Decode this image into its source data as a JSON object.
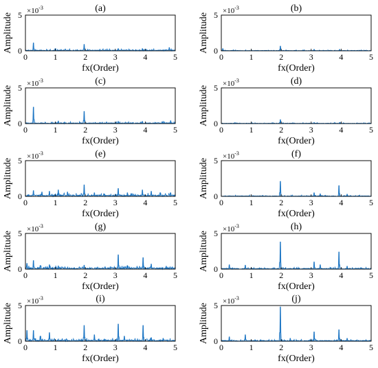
{
  "figure": {
    "x_label": "fx(Order)",
    "y_label": "Amplitude",
    "y_multiplier_base": "×10",
    "y_multiplier_exp": "-3",
    "series_color": "#1f77c4"
  },
  "chart_data": [
    {
      "type": "line",
      "title": "(a)",
      "xlabel": "fx(Order)",
      "ylabel": "Amplitude",
      "xlim": [
        0,
        5
      ],
      "ylim": [
        0,
        5
      ],
      "y_units": "×10^-3",
      "x_ticks": [
        "0",
        "1",
        "2",
        "3",
        "4",
        "5"
      ],
      "y_ticks": [
        "0",
        "5"
      ],
      "noise_level": 0.12,
      "peaks": [
        {
          "x": 0.27,
          "y": 1.1
        },
        {
          "x": 1.96,
          "y": 0.9
        },
        {
          "x": 1.0,
          "y": 0.3
        },
        {
          "x": 3.1,
          "y": 0.3
        },
        {
          "x": 3.9,
          "y": 0.3
        },
        {
          "x": 4.8,
          "y": 0.45
        }
      ]
    },
    {
      "type": "line",
      "title": "(b)",
      "xlabel": "fx(Order)",
      "ylabel": "Amplitude",
      "xlim": [
        0,
        5
      ],
      "ylim": [
        0,
        5
      ],
      "y_units": "×10^-3",
      "x_ticks": [
        "0",
        "1",
        "2",
        "3",
        "4",
        "5"
      ],
      "y_ticks": [
        "0",
        "5"
      ],
      "noise_level": 0.06,
      "peaks": [
        {
          "x": 1.97,
          "y": 0.65
        },
        {
          "x": 0.05,
          "y": 0.3
        },
        {
          "x": 3.1,
          "y": 0.2
        },
        {
          "x": 3.95,
          "y": 0.2
        }
      ]
    },
    {
      "type": "line",
      "title": "(c)",
      "xlabel": "fx(Order)",
      "ylabel": "Amplitude",
      "xlim": [
        0,
        5
      ],
      "ylim": [
        0,
        5
      ],
      "y_units": "×10^-3",
      "x_ticks": [
        "0",
        "1",
        "2",
        "3",
        "4",
        "5"
      ],
      "y_ticks": [
        "0",
        "5"
      ],
      "noise_level": 0.12,
      "peaks": [
        {
          "x": 0.27,
          "y": 2.3
        },
        {
          "x": 1.96,
          "y": 1.7
        },
        {
          "x": 1.1,
          "y": 0.35
        },
        {
          "x": 3.1,
          "y": 0.3
        },
        {
          "x": 3.9,
          "y": 0.3
        },
        {
          "x": 4.6,
          "y": 0.3
        },
        {
          "x": 4.85,
          "y": 0.4
        }
      ]
    },
    {
      "type": "line",
      "title": "(d)",
      "xlabel": "fx(Order)",
      "ylabel": "Amplitude",
      "xlim": [
        0,
        5
      ],
      "ylim": [
        0,
        5
      ],
      "y_units": "×10^-3",
      "x_ticks": [
        "0",
        "1",
        "2",
        "3",
        "4",
        "5"
      ],
      "y_ticks": [
        "0",
        "5"
      ],
      "noise_level": 0.06,
      "peaks": [
        {
          "x": 1.97,
          "y": 0.55
        },
        {
          "x": 3.1,
          "y": 0.15
        },
        {
          "x": 3.95,
          "y": 0.15
        }
      ]
    },
    {
      "type": "line",
      "title": "(e)",
      "xlabel": "fx(Order)",
      "ylabel": "Amplitude",
      "xlim": [
        0,
        5
      ],
      "ylim": [
        0,
        5
      ],
      "y_units": "×10^-3",
      "x_ticks": [
        "0",
        "1",
        "2",
        "3",
        "4",
        "5"
      ],
      "y_ticks": [
        "0",
        "5"
      ],
      "noise_level": 0.22,
      "peaks": [
        {
          "x": 0.27,
          "y": 0.8
        },
        {
          "x": 0.55,
          "y": 0.6
        },
        {
          "x": 0.8,
          "y": 0.7
        },
        {
          "x": 1.1,
          "y": 0.9
        },
        {
          "x": 1.4,
          "y": 0.6
        },
        {
          "x": 1.96,
          "y": 1.6
        },
        {
          "x": 2.3,
          "y": 0.5
        },
        {
          "x": 3.1,
          "y": 1.1
        },
        {
          "x": 3.4,
          "y": 0.5
        },
        {
          "x": 3.9,
          "y": 0.9
        },
        {
          "x": 4.2,
          "y": 0.7
        },
        {
          "x": 4.5,
          "y": 0.5
        },
        {
          "x": 4.85,
          "y": 0.5
        }
      ]
    },
    {
      "type": "line",
      "title": "(f)",
      "xlabel": "fx(Order)",
      "ylabel": "Amplitude",
      "xlim": [
        0,
        5
      ],
      "ylim": [
        0,
        5
      ],
      "y_units": "×10^-3",
      "x_ticks": [
        "0",
        "1",
        "2",
        "3",
        "4",
        "5"
      ],
      "y_ticks": [
        "0",
        "5"
      ],
      "noise_level": 0.08,
      "peaks": [
        {
          "x": 1.97,
          "y": 2.1
        },
        {
          "x": 3.93,
          "y": 1.5
        },
        {
          "x": 3.1,
          "y": 0.5
        },
        {
          "x": 3.3,
          "y": 0.35
        },
        {
          "x": 4.2,
          "y": 0.3
        }
      ]
    },
    {
      "type": "line",
      "title": "(g)",
      "xlabel": "fx(Order)",
      "ylabel": "Amplitude",
      "xlim": [
        0,
        5
      ],
      "ylim": [
        0,
        5
      ],
      "y_units": "×10^-3",
      "x_ticks": [
        "0",
        "1",
        "2",
        "3",
        "4",
        "5"
      ],
      "y_ticks": [
        "0",
        "5"
      ],
      "noise_level": 0.22,
      "peaks": [
        {
          "x": 0.27,
          "y": 1.2
        },
        {
          "x": 0.05,
          "y": 0.8
        },
        {
          "x": 0.5,
          "y": 0.5
        },
        {
          "x": 0.8,
          "y": 0.6
        },
        {
          "x": 1.1,
          "y": 0.45
        },
        {
          "x": 1.96,
          "y": 0.55
        },
        {
          "x": 3.1,
          "y": 2.0
        },
        {
          "x": 3.4,
          "y": 0.5
        },
        {
          "x": 3.93,
          "y": 1.6
        },
        {
          "x": 4.2,
          "y": 0.7
        },
        {
          "x": 4.7,
          "y": 0.4
        }
      ]
    },
    {
      "type": "line",
      "title": "(h)",
      "xlabel": "fx(Order)",
      "ylabel": "Amplitude",
      "xlim": [
        0,
        5
      ],
      "ylim": [
        0,
        5
      ],
      "y_units": "×10^-3",
      "x_ticks": [
        "0",
        "1",
        "2",
        "3",
        "4",
        "5"
      ],
      "y_ticks": [
        "0",
        "5"
      ],
      "noise_level": 0.12,
      "peaks": [
        {
          "x": 1.97,
          "y": 3.8
        },
        {
          "x": 3.93,
          "y": 2.4
        },
        {
          "x": 3.1,
          "y": 1.0
        },
        {
          "x": 0.27,
          "y": 0.6
        },
        {
          "x": 0.8,
          "y": 0.55
        },
        {
          "x": 3.3,
          "y": 0.6
        },
        {
          "x": 4.2,
          "y": 0.4
        }
      ]
    },
    {
      "type": "line",
      "title": "(i)",
      "xlabel": "fx(Order)",
      "ylabel": "Amplitude",
      "xlim": [
        0,
        5
      ],
      "ylim": [
        0,
        5
      ],
      "y_units": "×10^-3",
      "x_ticks": [
        "0",
        "1",
        "2",
        "3",
        "4",
        "5"
      ],
      "y_ticks": [
        "0",
        "5"
      ],
      "noise_level": 0.2,
      "peaks": [
        {
          "x": 0.05,
          "y": 1.5
        },
        {
          "x": 0.27,
          "y": 1.5
        },
        {
          "x": 0.5,
          "y": 0.7
        },
        {
          "x": 0.8,
          "y": 1.2
        },
        {
          "x": 1.96,
          "y": 2.2
        },
        {
          "x": 2.3,
          "y": 0.9
        },
        {
          "x": 3.1,
          "y": 2.4
        },
        {
          "x": 3.3,
          "y": 0.7
        },
        {
          "x": 3.93,
          "y": 2.2
        },
        {
          "x": 4.2,
          "y": 0.5
        },
        {
          "x": 4.6,
          "y": 0.4
        }
      ]
    },
    {
      "type": "line",
      "title": "(j)",
      "xlabel": "fx(Order)",
      "ylabel": "Amplitude",
      "xlim": [
        0,
        5
      ],
      "ylim": [
        0,
        5
      ],
      "y_units": "×10^-3",
      "x_ticks": [
        "0",
        "1",
        "2",
        "3",
        "4",
        "5"
      ],
      "y_ticks": [
        "0",
        "5"
      ],
      "noise_level": 0.12,
      "peaks": [
        {
          "x": 1.97,
          "y": 4.8
        },
        {
          "x": 3.1,
          "y": 1.3
        },
        {
          "x": 3.93,
          "y": 1.6
        },
        {
          "x": 0.27,
          "y": 0.6
        },
        {
          "x": 0.8,
          "y": 0.9
        },
        {
          "x": 2.3,
          "y": 0.4
        },
        {
          "x": 4.2,
          "y": 0.4
        }
      ]
    }
  ]
}
